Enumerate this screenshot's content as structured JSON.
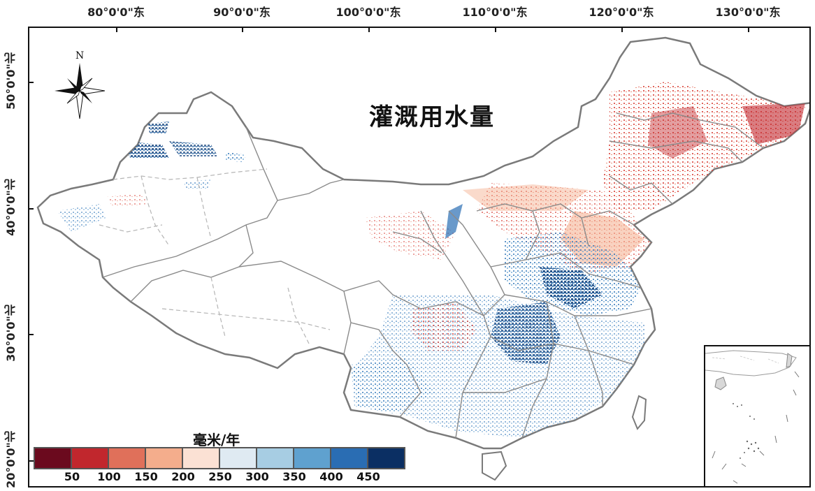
{
  "map": {
    "title": "灌溉用水量",
    "north_label": "N",
    "longitude_labels": [
      "80°0'0\"东",
      "90°0'0\"东",
      "100°0'0\"东",
      "110°0'0\"东",
      "120°0'0\"东",
      "130°0'0\"东"
    ],
    "latitude_labels": [
      "50°0'0\"北",
      "40°0'0\"北",
      "30°0'0\"北",
      "20°0'0\"北"
    ]
  },
  "legend": {
    "title": "毫米/年",
    "ticks": [
      "50",
      "100",
      "150",
      "200",
      "250",
      "300",
      "350",
      "400",
      "450"
    ],
    "colors": [
      "#6b0a1e",
      "#c1272d",
      "#e0705a",
      "#f4ad8c",
      "#fbe1d4",
      "#dfeaf2",
      "#a7cde3",
      "#5fa1cf",
      "#2a6db3",
      "#0b2f63"
    ]
  },
  "colors": {
    "boundary_province": "#8a8a8a",
    "boundary_national": "#7a7a7a",
    "dry_red": "#d23b3b",
    "wet_blue": "#2466a8"
  }
}
